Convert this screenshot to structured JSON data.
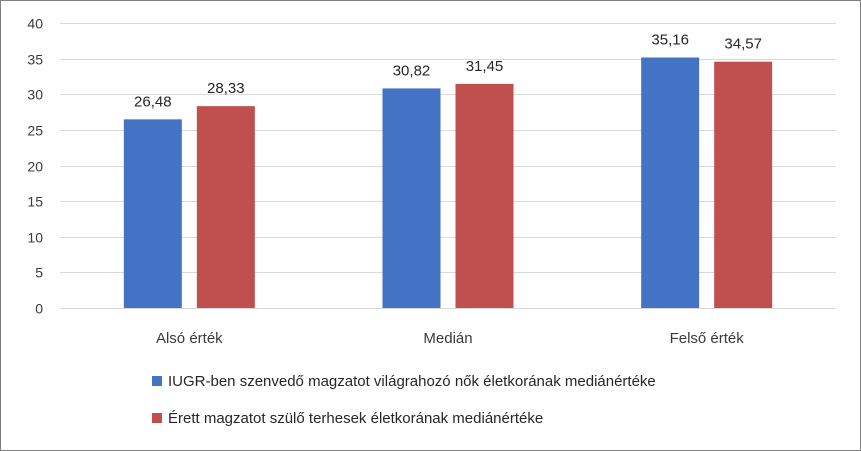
{
  "chart_data": {
    "type": "bar",
    "categories": [
      "Alsó érték",
      "Medián",
      "Felső érték"
    ],
    "series": [
      {
        "name": "IUGR-ben szenvedő magzatot világrahozó nők életkorának mediánértéke",
        "color": "#4472C4",
        "values": [
          26.48,
          30.82,
          35.16
        ],
        "labels": [
          "26,48",
          "30,82",
          "35,16"
        ]
      },
      {
        "name": "Érett magzatot szülő terhesek életkorának mediánértéke",
        "color": "#C0504D",
        "values": [
          28.33,
          31.45,
          34.57
        ],
        "labels": [
          "28,33",
          "31,45",
          "34,57"
        ]
      }
    ],
    "ylim": [
      0,
      40
    ],
    "yticks": [
      0,
      5,
      10,
      15,
      20,
      25,
      30,
      35,
      40
    ],
    "grid": true,
    "legend_position": "bottom"
  }
}
